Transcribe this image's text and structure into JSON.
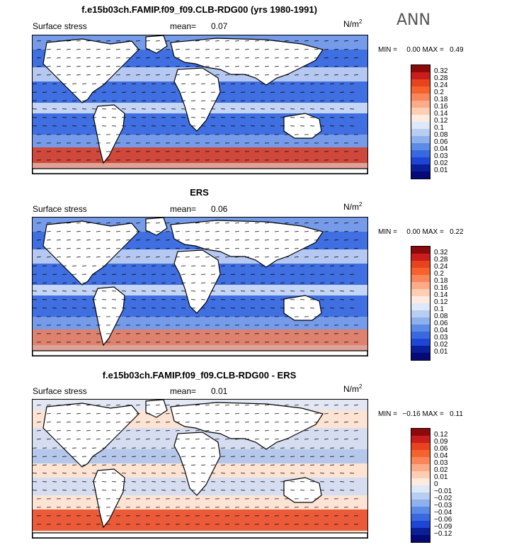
{
  "season": "ANN",
  "panels": [
    {
      "title": "f.e15b03ch.FAMIP.f09_f09.CLB-RDG00 (yrs 1980-1991)",
      "field": "Surface stress",
      "mean_label": "mean=",
      "mean": "0.07",
      "units": "N/m",
      "units_exp": "2",
      "min_label": "MIN =",
      "min": "0.00",
      "max_label": "MAX =",
      "max": "0.49",
      "levels": [
        "0.32",
        "0.28",
        "0.24",
        "0.2",
        "0.18",
        "0.16",
        "0.14",
        "0.12",
        "0.1",
        "0.08",
        "0.06",
        "0.04",
        "0.03",
        "0.02",
        "0.01"
      ],
      "colors": [
        "#8c0a0a",
        "#c81e1e",
        "#e8431f",
        "#f5622e",
        "#f9865a",
        "#fbab88",
        "#fdcdb4",
        "#fdebe0",
        "#dde8f8",
        "#b7cdf2",
        "#8eb0ec",
        "#5c8be5",
        "#3a69df",
        "#1f45d6",
        "#0a1f98",
        "#050a78"
      ]
    },
    {
      "title": "ERS",
      "field": "Surface stress",
      "mean_label": "mean=",
      "mean": "0.06",
      "units": "N/m",
      "units_exp": "2",
      "min_label": "MIN =",
      "min": "0.00",
      "max_label": "MAX =",
      "max": "0.22",
      "levels": [
        "0.32",
        "0.28",
        "0.24",
        "0.2",
        "0.18",
        "0.16",
        "0.14",
        "0.12",
        "0.1",
        "0.08",
        "0.06",
        "0.04",
        "0.03",
        "0.02",
        "0.01"
      ],
      "colors": [
        "#8c0a0a",
        "#c81e1e",
        "#e8431f",
        "#f5622e",
        "#f9865a",
        "#fbab88",
        "#fdcdb4",
        "#fdebe0",
        "#dde8f8",
        "#b7cdf2",
        "#8eb0ec",
        "#5c8be5",
        "#3a69df",
        "#1f45d6",
        "#0a1f98",
        "#050a78"
      ]
    },
    {
      "title": "f.e15b03ch.FAMIP.f09_f09.CLB-RDG00 - ERS",
      "field": "Surface stress",
      "mean_label": "mean=",
      "mean": "0.01",
      "units": "N/m",
      "units_exp": "2",
      "min_label": "MIN =",
      "min": "−0.16",
      "max_label": "MAX =",
      "max": "0.11",
      "levels": [
        "0.12",
        "0.09",
        "0.06",
        "0.04",
        "0.03",
        "0.02",
        "0.01",
        "0",
        "−0.01",
        "−0.02",
        "−0.03",
        "−0.04",
        "−0.06",
        "−0.09",
        "−0.12"
      ],
      "colors": [
        "#8c0a0a",
        "#c81e1e",
        "#e8431f",
        "#f5622e",
        "#f9865a",
        "#fbab88",
        "#fdcdb4",
        "#fdebe0",
        "#dde8f8",
        "#b7cdf2",
        "#8eb0ec",
        "#5c8be5",
        "#3a69df",
        "#1f45d6",
        "#0a1f98",
        "#050a78"
      ]
    }
  ]
}
